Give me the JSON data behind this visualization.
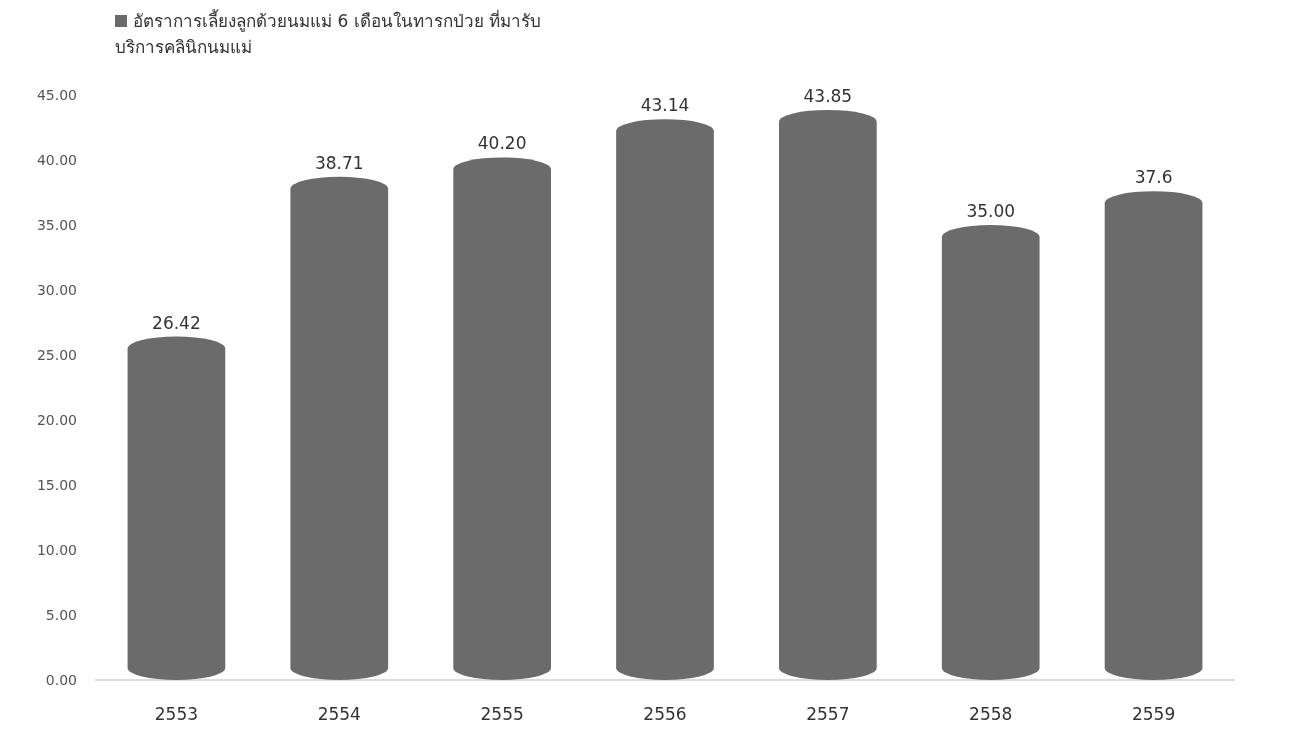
{
  "chart_data": {
    "type": "bar",
    "categories": [
      "2553",
      "2554",
      "2555",
      "2556",
      "2557",
      "2558",
      "2559"
    ],
    "series": [
      {
        "name": "อัตราการเลี้ยงลูกด้วยนมแม่ 6  เดือนในทารกป่วย ที่มารับบริการคลินิกนมแม่",
        "color": "#6b6b6b",
        "values": [
          26.42,
          38.71,
          40.2,
          43.14,
          43.85,
          35,
          37.6
        ],
        "value_labels": [
          "26.42",
          "38.71",
          "40.20",
          "43.14",
          "43.85",
          "35.00",
          "37.6"
        ]
      }
    ],
    "ylim": [
      0,
      45
    ],
    "yticks": [
      {
        "value": 0,
        "label": "0.00"
      },
      {
        "value": 5,
        "label": "5.00"
      },
      {
        "value": 10,
        "label": "10.00"
      },
      {
        "value": 15,
        "label": "15.00"
      },
      {
        "value": 20,
        "label": "20.00"
      },
      {
        "value": 25,
        "label": "25.00"
      },
      {
        "value": 30,
        "label": "30.00"
      },
      {
        "value": 35,
        "label": "35.00"
      },
      {
        "value": 40,
        "label": "40.00"
      },
      {
        "value": 45,
        "label": "45.00"
      }
    ],
    "legend": "top left"
  }
}
